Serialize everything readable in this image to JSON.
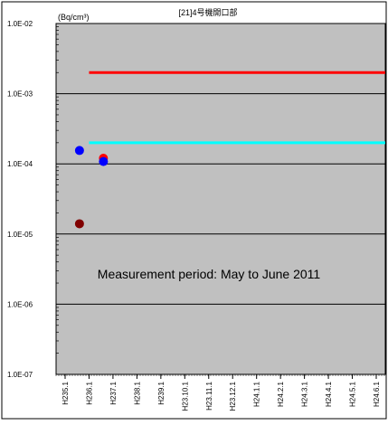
{
  "chart_data": {
    "type": "scatter",
    "title": "[21]4号機開口部",
    "unit_label": "(Bq/cm³)",
    "annotation": "Measurement period: May to June 2011",
    "y_scale": "log",
    "ylim": [
      1e-07,
      0.01
    ],
    "y_ticks": [
      "1.0E-02",
      "1.0E-03",
      "1.0E-04",
      "1.0E-05",
      "1.0E-06",
      "1.0E-07"
    ],
    "x_ticks": [
      "H235.1",
      "H236.1",
      "H237.1",
      "H238.1",
      "H239.1",
      "H23.10.1",
      "H23.11.1",
      "H23.12.1",
      "H24.1.1",
      "H24.2.1",
      "H24.3.1",
      "H24.4.1",
      "H24.5.1",
      "H24.6.1"
    ],
    "grid": true,
    "plot_background": "#c0c0c0",
    "reference_lines": [
      {
        "color": "#ff0000",
        "value": 0.002,
        "x_start": "H236.1"
      },
      {
        "color": "#00ffff",
        "value": 0.0002,
        "x_start": "H236.1"
      }
    ],
    "series": [
      {
        "color": "#800000",
        "points": [
          {
            "x": "H235.15",
            "y": 1.4e-05
          }
        ]
      },
      {
        "color": "#ff0000",
        "points": [
          {
            "x": "H236.15",
            "y": 0.00012
          }
        ]
      },
      {
        "color": "#0000ff",
        "points": [
          {
            "x": "H235.15",
            "y": 0.000155
          },
          {
            "x": "H236.15",
            "y": 0.000108
          }
        ]
      }
    ]
  }
}
